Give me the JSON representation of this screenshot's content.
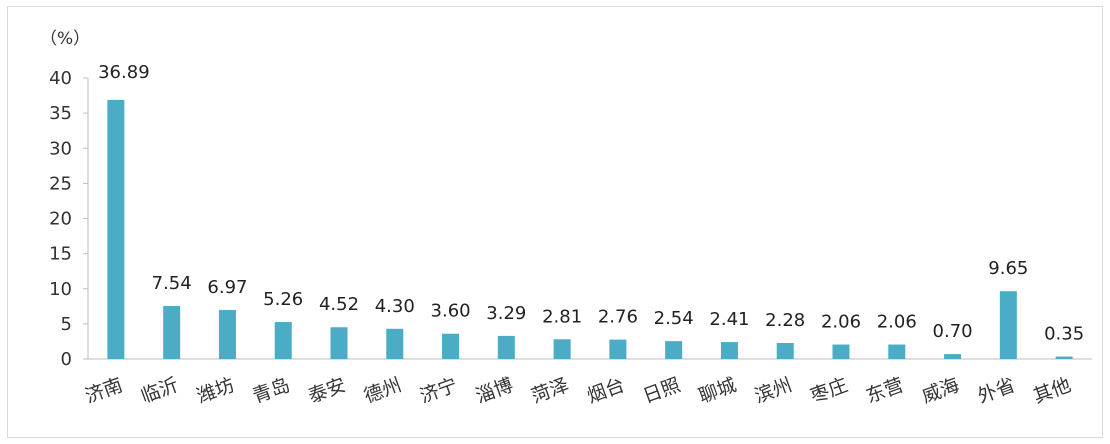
{
  "chart_data": {
    "type": "bar",
    "unit_label": "（%）",
    "categories": [
      "济南",
      "临沂",
      "潍坊",
      "青岛",
      "泰安",
      "德州",
      "济宁",
      "淄博",
      "菏泽",
      "烟台",
      "日照",
      "聊城",
      "滨州",
      "枣庄",
      "东营",
      "威海",
      "外省",
      "其他"
    ],
    "values": [
      36.89,
      7.54,
      6.97,
      5.26,
      4.52,
      4.3,
      3.6,
      3.29,
      2.81,
      2.76,
      2.54,
      2.41,
      2.28,
      2.06,
      2.06,
      0.7,
      9.65,
      0.35
    ],
    "data_labels": [
      "36.89",
      "7.54",
      "6.97",
      "5.26",
      "4.52",
      "4.30",
      "3.60",
      "3.29",
      "2.81",
      "2.76",
      "2.54",
      "2.41",
      "2.28",
      "2.06",
      "2.06",
      "0.70",
      "9.65",
      "0.35"
    ],
    "y_ticks": [
      "0",
      "5",
      "10",
      "15",
      "20",
      "25",
      "30",
      "35",
      "40"
    ],
    "ylim": [
      0,
      40
    ],
    "grid": false,
    "legend": "none",
    "bar_color": "#4bacc6"
  }
}
